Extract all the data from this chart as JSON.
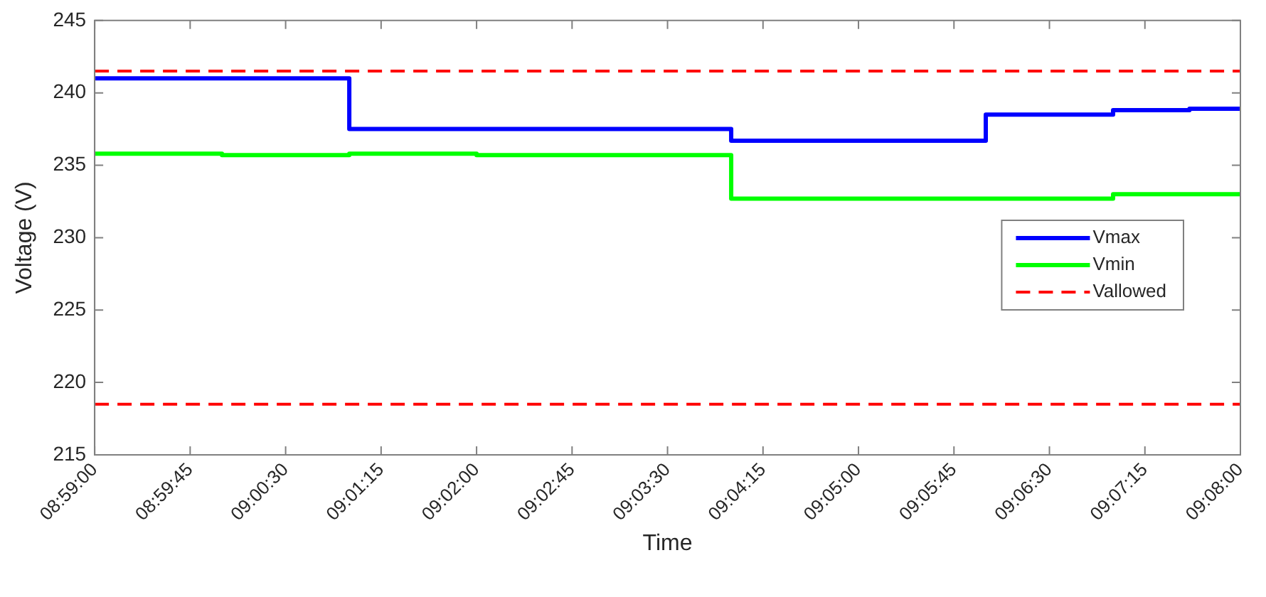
{
  "chart_data": {
    "type": "step",
    "xlabel": "Time",
    "ylabel": "Voltage (V)",
    "series": [
      {
        "name": "Vmax",
        "color": "#0000ff",
        "x": [
          8.983333,
          9.016667,
          9.066667,
          9.1,
          9.116667,
          9.126667,
          9.133333
        ],
        "values": [
          241.0,
          237.5,
          236.7,
          238.5,
          238.8,
          238.9,
          238.9
        ]
      },
      {
        "name": "Vmin",
        "color": "#00ff00",
        "x": [
          8.983333,
          9.0,
          9.016667,
          9.033333,
          9.066667,
          9.116667,
          9.133333
        ],
        "values": [
          235.8,
          235.7,
          235.8,
          235.7,
          232.7,
          233.0,
          233.0
        ]
      }
    ],
    "ref_lines": [
      {
        "axis": "y",
        "value": 241.5,
        "label": "Vallowed",
        "color": "#ff0000",
        "line_style": "dashed"
      },
      {
        "axis": "y",
        "value": 218.5,
        "color": "#ff0000",
        "line_style": "dashed"
      }
    ],
    "xlim": [
      8.983333,
      9.133333
    ],
    "xticks": [
      {
        "value": 8.983333,
        "label": "08:59:00"
      },
      {
        "value": 8.995833,
        "label": "08:59:45"
      },
      {
        "value": 9.008333,
        "label": "09:00:30"
      },
      {
        "value": 9.020833,
        "label": "09:01:15"
      },
      {
        "value": 9.033333,
        "label": "09:02:00"
      },
      {
        "value": 9.045833,
        "label": "09:02:45"
      },
      {
        "value": 9.058333,
        "label": "09:03:30"
      },
      {
        "value": 9.070833,
        "label": "09:04:15"
      },
      {
        "value": 9.083333,
        "label": "09:05:00"
      },
      {
        "value": 9.095833,
        "label": "09:05:45"
      },
      {
        "value": 9.108333,
        "label": "09:06:30"
      },
      {
        "value": 9.120833,
        "label": "09:07:15"
      },
      {
        "value": 9.133333,
        "label": "09:08:00"
      }
    ],
    "ylim": [
      215,
      245
    ],
    "yticks": [
      215,
      220,
      225,
      230,
      235,
      240,
      245
    ],
    "legend": "right",
    "line_style": "solid",
    "marker": "none",
    "grid": false
  }
}
